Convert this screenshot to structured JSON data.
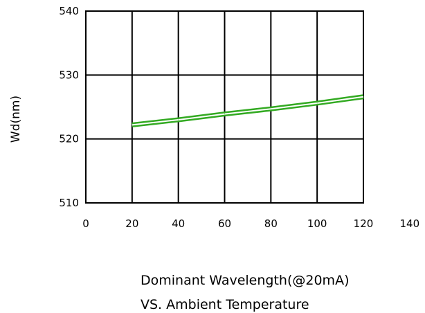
{
  "chart_data": {
    "type": "line",
    "ylabel": "Wd(nm)",
    "xlabel": "",
    "caption_lines": [
      "Dominant Wavelength(@20mA)",
      "VS. Ambient Temperature"
    ],
    "xlim": [
      0,
      140
    ],
    "ylim": [
      510,
      540
    ],
    "x_ticks": [
      0,
      20,
      40,
      60,
      80,
      100,
      120,
      140
    ],
    "y_ticks": [
      510,
      520,
      530,
      540
    ],
    "grid": true,
    "legend": false,
    "series": [
      {
        "color": "#33aa22",
        "x": [
          20,
          40,
          60,
          80,
          100,
          120
        ],
        "y": [
          522.2,
          523.0,
          523.9,
          524.7,
          525.6,
          526.6
        ]
      }
    ]
  }
}
